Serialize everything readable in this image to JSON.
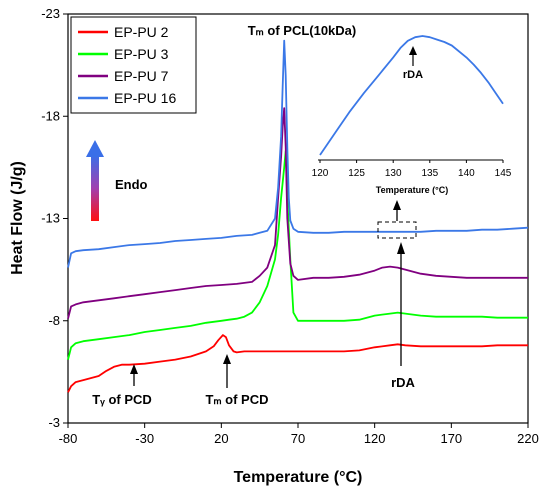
{
  "chart_data": {
    "type": "line",
    "xlabel": "Temperature (°C)",
    "ylabel": "Heat Flow (J/g)",
    "xlim": [
      -80,
      220
    ],
    "ylim": [
      -3,
      -23
    ],
    "xticks": [
      "-80",
      "-30",
      "20",
      "70",
      "120",
      "170",
      "220"
    ],
    "yticks": [
      "-3",
      "-8",
      "-13",
      "-18",
      "-23"
    ],
    "legend_position": "top-left",
    "series": [
      {
        "name": "EP-PU 2",
        "color": "#ff0000",
        "x": [
          -80,
          -78,
          -75,
          -70,
          -60,
          -55,
          -50,
          -45,
          -40,
          -30,
          -20,
          -10,
          0,
          10,
          15,
          18,
          21,
          23,
          25,
          28,
          30,
          35,
          40,
          50,
          60,
          70,
          80,
          90,
          100,
          110,
          120,
          130,
          135,
          140,
          150,
          160,
          170,
          180,
          190,
          200,
          210,
          220
        ],
        "y": [
          -4.5,
          -4.8,
          -5.0,
          -5.1,
          -5.3,
          -5.55,
          -5.75,
          -5.85,
          -5.85,
          -5.9,
          -6.0,
          -6.1,
          -6.25,
          -6.5,
          -6.75,
          -7.05,
          -7.3,
          -7.2,
          -6.8,
          -6.5,
          -6.45,
          -6.5,
          -6.5,
          -6.5,
          -6.5,
          -6.5,
          -6.5,
          -6.5,
          -6.5,
          -6.55,
          -6.7,
          -6.8,
          -6.85,
          -6.8,
          -6.75,
          -6.75,
          -6.75,
          -6.75,
          -6.75,
          -6.8,
          -6.8,
          -6.8
        ]
      },
      {
        "name": "EP-PU 3",
        "color": "#00ff00",
        "x": [
          -80,
          -78,
          -75,
          -70,
          -60,
          -50,
          -40,
          -30,
          -20,
          -10,
          0,
          10,
          20,
          25,
          30,
          35,
          40,
          45,
          50,
          55,
          57,
          59,
          61,
          62,
          63,
          65,
          67,
          70,
          80,
          90,
          100,
          110,
          120,
          130,
          135,
          140,
          150,
          160,
          170,
          180,
          190,
          200,
          210,
          220
        ],
        "y": [
          -6.1,
          -6.7,
          -6.9,
          -7.0,
          -7.1,
          -7.2,
          -7.3,
          -7.45,
          -7.55,
          -7.65,
          -7.75,
          -7.9,
          -8.0,
          -8.05,
          -8.1,
          -8.2,
          -8.4,
          -8.9,
          -9.7,
          -11.0,
          -12.2,
          -14.0,
          -15.5,
          -16.3,
          -14.0,
          -11.0,
          -8.4,
          -8.0,
          -8.0,
          -8.0,
          -8.0,
          -8.05,
          -8.25,
          -8.35,
          -8.4,
          -8.35,
          -8.25,
          -8.2,
          -8.2,
          -8.2,
          -8.2,
          -8.15,
          -8.15,
          -8.15
        ]
      },
      {
        "name": "EP-PU 7",
        "color": "#800080",
        "x": [
          -80,
          -78,
          -75,
          -70,
          -60,
          -50,
          -40,
          -30,
          -20,
          -10,
          0,
          10,
          20,
          30,
          40,
          45,
          50,
          55,
          57,
          59,
          60,
          61,
          62,
          63,
          65,
          67,
          70,
          80,
          90,
          100,
          110,
          120,
          125,
          130,
          135,
          140,
          150,
          160,
          170,
          180,
          190,
          200,
          210,
          220
        ],
        "y": [
          -8.1,
          -8.7,
          -8.8,
          -8.9,
          -9.0,
          -9.1,
          -9.2,
          -9.3,
          -9.4,
          -9.5,
          -9.6,
          -9.7,
          -9.75,
          -9.8,
          -9.9,
          -10.2,
          -10.6,
          -11.7,
          -14.0,
          -16.0,
          -17.5,
          -18.4,
          -16.5,
          -13.0,
          -10.8,
          -10.2,
          -10.0,
          -10.1,
          -10.1,
          -10.15,
          -10.25,
          -10.45,
          -10.6,
          -10.65,
          -10.6,
          -10.5,
          -10.3,
          -10.2,
          -10.15,
          -10.1,
          -10.1,
          -10.1,
          -10.1,
          -10.1
        ]
      },
      {
        "name": "EP-PU 16",
        "color": "#3b78e7",
        "x": [
          -80,
          -78,
          -75,
          -70,
          -60,
          -50,
          -40,
          -30,
          -20,
          -10,
          0,
          10,
          20,
          30,
          40,
          45,
          50,
          55,
          57,
          59,
          60,
          61,
          62,
          63,
          64,
          65,
          67,
          70,
          80,
          90,
          100,
          110,
          120,
          130,
          140,
          150,
          160,
          170,
          180,
          190,
          200,
          210,
          220
        ],
        "y": [
          -10.6,
          -11.3,
          -11.4,
          -11.45,
          -11.5,
          -11.6,
          -11.7,
          -11.75,
          -11.8,
          -11.9,
          -11.95,
          -12.0,
          -12.05,
          -12.15,
          -12.2,
          -12.3,
          -12.4,
          -13.0,
          -14.5,
          -17.0,
          -19.5,
          -21.7,
          -20.0,
          -16.5,
          -14.0,
          -12.9,
          -12.5,
          -12.35,
          -12.3,
          -12.3,
          -12.35,
          -12.35,
          -12.35,
          -12.35,
          -12.35,
          -12.35,
          -12.4,
          -12.4,
          -12.4,
          -12.45,
          -12.45,
          -12.5,
          -12.55
        ]
      }
    ],
    "annotations": {
      "tm_pcl": "Tₘ of PCL(10kDa)",
      "endo": "Endo",
      "rda_main": "rDA",
      "tg_pcd": "Tᵧ of PCD",
      "tm_pcd": "Tₘ of PCD"
    },
    "inset": {
      "xlabel": "Temperature (°C)",
      "xlim": [
        120,
        145
      ],
      "xticks": [
        "120",
        "125",
        "130",
        "135",
        "140",
        "145"
      ],
      "annotation": "rDA",
      "x": [
        120,
        122,
        124,
        126,
        128,
        130,
        131,
        132,
        133,
        134,
        135,
        136,
        137,
        138,
        140,
        141,
        142,
        143,
        144,
        145
      ],
      "y": [
        0,
        0.18,
        0.36,
        0.52,
        0.67,
        0.82,
        0.9,
        0.96,
        0.99,
        1.0,
        0.99,
        0.97,
        0.95,
        0.92,
        0.82,
        0.76,
        0.69,
        0.61,
        0.52,
        0.43
      ]
    }
  }
}
